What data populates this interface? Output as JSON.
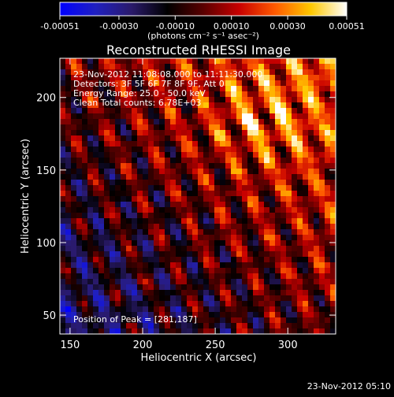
{
  "colorbar": {
    "tick_labels": [
      "-0.00051",
      "-0.00030",
      "-0.00010",
      "0.00010",
      "0.00030",
      "0.00051"
    ],
    "tick_values": [
      -0.00051,
      -0.0003,
      -0.0001,
      0.0001,
      0.0003,
      0.00051
    ],
    "range": [
      -0.00051,
      0.00051
    ],
    "units_label": "(photons cm⁻² s⁻¹ asec⁻²)",
    "colors": [
      "#0000ff",
      "#2020c0",
      "#2a1a6a",
      "#000000",
      "#5a0000",
      "#c80000",
      "#ff5a00",
      "#ffc800",
      "#ffffff"
    ]
  },
  "header": {
    "info_lines": [
      "23-Nov-2012 11:08:08.000 to 11:11:30.000",
      "Detectors: 3F 5F 6F 7F 8F 9F, Att 0",
      "Energy Range: 25.0 - 50.0 keV",
      "Clean    Total counts: 6.78E+03"
    ],
    "peak_text": "Position of Peak = [281,187]",
    "timestamp": "23-Nov-2012 05:10"
  },
  "chart_data": {
    "type": "heatmap",
    "title": "Reconstructed RHESSI Image",
    "xlabel": "Heliocentric X (arcsec)",
    "ylabel": "Heliocentric Y (arcsec)",
    "xlim": [
      143,
      333
    ],
    "ylim": [
      37,
      227
    ],
    "xticks": [
      150,
      200,
      250,
      300
    ],
    "xtick_labels": [
      "150",
      "200",
      "250",
      "300"
    ],
    "yticks": [
      50,
      100,
      150,
      200
    ],
    "ytick_labels": [
      "50",
      "100",
      "150",
      "200"
    ],
    "peak_position": [
      281,
      187
    ],
    "value_range": [
      -0.00051,
      0.00051
    ],
    "pattern": "diagonal striped Clean image, positive flux concentrated toward upper-right, negative residuals toward lower-left"
  }
}
